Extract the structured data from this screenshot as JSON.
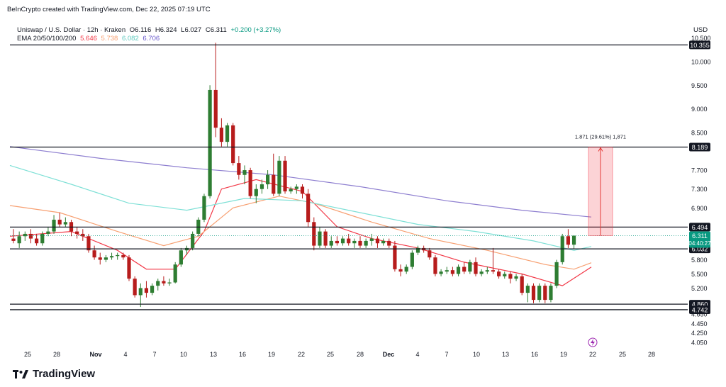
{
  "header": {
    "credit": "BeInCrypto created with TradingView.com, Dec 22, 2025 07:19 UTC",
    "symbol": "Uniswap / U.S. Dollar · 12h · Kraken",
    "ohlc": {
      "o": "O6.116",
      "h": "H6.324",
      "l": "L6.027",
      "c": "C6.311",
      "chg": "+0.200 (+3.27%)"
    },
    "ema_label": "EMA 20/50/100/200",
    "ema_values": [
      "5.646",
      "5.738",
      "6.082",
      "6.706"
    ],
    "currency": "USD"
  },
  "brand": "TradingView",
  "colors": {
    "up": "#089981",
    "down": "#f23645",
    "candle_up": "#2e7d32",
    "candle_down": "#b71c1c",
    "ema20": "#f23645",
    "ema50": "#f7a072",
    "ema100": "#7ee0d6",
    "ema200": "#8e7fd0"
  },
  "chart_data": {
    "type": "candlestick",
    "y_ticks": [
      "10.500",
      "10.000",
      "9.500",
      "9.000",
      "8.500",
      "7.700",
      "7.300",
      "6.900",
      "5.800",
      "5.500",
      "5.200",
      "4.650",
      "4.450",
      "4.250",
      "4.050"
    ],
    "ylim": [
      3.95,
      10.6
    ],
    "x_ticks": [
      "25",
      "28",
      "Nov",
      "4",
      "7",
      "10",
      "13",
      "16",
      "19",
      "22",
      "25",
      "28",
      "Dec",
      "4",
      "7",
      "10",
      "13",
      "16",
      "19",
      "22",
      "25",
      "28"
    ],
    "levels": [
      10.355,
      8.189,
      6.494,
      6.032,
      4.86,
      4.742
    ],
    "level_labels": [
      "10.355",
      "8.189",
      "6.494",
      "6.032",
      "4.860",
      "4.742"
    ],
    "price_label": "6.311",
    "countdown": "04:40:27",
    "measure_label": "1.871 (29.61%) 1,871",
    "candles": [
      [
        6.25,
        6.45,
        6.2,
        6.15
      ],
      [
        6.15,
        6.4,
        6.3,
        6.05
      ],
      [
        6.3,
        6.4,
        6.35,
        6.2
      ],
      [
        6.35,
        6.45,
        6.25,
        6.15
      ],
      [
        6.25,
        6.35,
        6.15,
        6.1
      ],
      [
        6.15,
        6.4,
        6.35,
        6.1
      ],
      [
        6.35,
        6.5,
        6.4,
        6.3
      ],
      [
        6.4,
        6.75,
        6.65,
        6.35
      ],
      [
        6.65,
        6.8,
        6.55,
        6.5
      ],
      [
        6.55,
        6.7,
        6.6,
        6.5
      ],
      [
        6.6,
        6.65,
        6.4,
        6.3
      ],
      [
        6.4,
        6.5,
        6.35,
        6.25
      ],
      [
        6.35,
        6.45,
        6.3,
        6.2
      ],
      [
        6.3,
        6.35,
        6.0,
        5.95
      ],
      [
        6.0,
        6.1,
        5.85,
        5.8
      ],
      [
        5.85,
        5.95,
        5.8,
        5.7
      ],
      [
        5.8,
        5.9,
        5.85,
        5.75
      ],
      [
        5.85,
        5.95,
        5.88,
        5.8
      ],
      [
        5.88,
        5.95,
        5.9,
        5.8
      ],
      [
        5.9,
        5.95,
        5.85,
        5.8
      ],
      [
        5.85,
        5.9,
        5.4,
        5.35
      ],
      [
        5.4,
        5.45,
        5.05,
        5.0
      ],
      [
        5.05,
        5.3,
        5.2,
        4.8
      ],
      [
        5.2,
        5.35,
        5.1,
        5.0
      ],
      [
        5.1,
        5.3,
        5.25,
        5.05
      ],
      [
        5.25,
        5.4,
        5.35,
        5.15
      ],
      [
        5.35,
        5.45,
        5.3,
        5.25
      ],
      [
        5.3,
        5.4,
        5.32,
        5.25
      ],
      [
        5.32,
        5.75,
        5.7,
        5.3
      ],
      [
        5.7,
        6.05,
        6.0,
        5.65
      ],
      [
        6.0,
        6.1,
        6.05,
        5.9
      ],
      [
        6.05,
        6.4,
        6.35,
        6.0
      ],
      [
        6.35,
        6.7,
        6.65,
        6.3
      ],
      [
        6.65,
        7.2,
        7.15,
        6.6
      ],
      [
        7.15,
        9.5,
        9.4,
        7.1
      ],
      [
        9.4,
        10.4,
        8.6,
        8.4
      ],
      [
        8.6,
        8.8,
        8.3,
        8.2
      ],
      [
        8.3,
        8.7,
        8.65,
        8.2
      ],
      [
        8.65,
        8.7,
        7.85,
        7.8
      ],
      [
        7.85,
        8.0,
        7.6,
        7.5
      ],
      [
        7.6,
        7.8,
        7.7,
        7.4
      ],
      [
        7.7,
        7.75,
        7.15,
        7.1
      ],
      [
        7.15,
        7.4,
        7.3,
        7.0
      ],
      [
        7.3,
        7.5,
        7.4,
        7.2
      ],
      [
        7.4,
        7.7,
        7.6,
        7.3
      ],
      [
        7.6,
        8.05,
        7.2,
        7.15
      ],
      [
        7.2,
        8.0,
        7.9,
        7.15
      ],
      [
        7.9,
        8.0,
        7.25,
        7.2
      ],
      [
        7.25,
        7.35,
        7.3,
        7.2
      ],
      [
        7.3,
        7.4,
        7.35,
        7.2
      ],
      [
        7.35,
        7.4,
        7.2,
        7.1
      ],
      [
        7.2,
        7.3,
        6.6,
        6.5
      ],
      [
        6.6,
        6.7,
        6.1,
        6.0
      ],
      [
        6.1,
        6.5,
        6.4,
        6.05
      ],
      [
        6.4,
        6.45,
        6.1,
        6.05
      ],
      [
        6.1,
        6.3,
        6.2,
        6.05
      ],
      [
        6.2,
        6.3,
        6.15,
        6.1
      ],
      [
        6.15,
        6.3,
        6.25,
        6.1
      ],
      [
        6.25,
        6.35,
        6.15,
        6.1
      ],
      [
        6.15,
        6.25,
        6.2,
        6.05
      ],
      [
        6.2,
        6.3,
        6.1,
        6.05
      ],
      [
        6.1,
        6.25,
        6.2,
        6.05
      ],
      [
        6.2,
        6.35,
        6.25,
        6.1
      ],
      [
        6.25,
        6.3,
        6.15,
        6.05
      ],
      [
        6.15,
        6.25,
        6.2,
        6.1
      ],
      [
        6.2,
        6.25,
        6.1,
        6.05
      ],
      [
        6.1,
        6.2,
        5.6,
        5.55
      ],
      [
        5.6,
        5.7,
        5.55,
        5.45
      ],
      [
        5.55,
        5.7,
        5.65,
        5.5
      ],
      [
        5.65,
        6.0,
        5.95,
        5.6
      ],
      [
        5.95,
        6.1,
        6.05,
        5.9
      ],
      [
        6.05,
        6.1,
        6.0,
        5.95
      ],
      [
        6.0,
        6.05,
        5.85,
        5.8
      ],
      [
        5.85,
        5.9,
        5.5,
        5.45
      ],
      [
        5.5,
        5.6,
        5.55,
        5.45
      ],
      [
        5.55,
        5.65,
        5.58,
        5.5
      ],
      [
        5.58,
        5.65,
        5.5,
        5.45
      ],
      [
        5.5,
        5.7,
        5.65,
        5.45
      ],
      [
        5.65,
        5.75,
        5.55,
        5.5
      ],
      [
        5.55,
        5.8,
        5.75,
        5.5
      ],
      [
        5.75,
        5.85,
        5.5,
        5.45
      ],
      [
        5.5,
        5.6,
        5.55,
        5.45
      ],
      [
        5.55,
        5.65,
        5.58,
        5.5
      ],
      [
        5.58,
        6.05,
        5.55,
        5.5
      ],
      [
        5.55,
        5.6,
        5.45,
        5.4
      ],
      [
        5.45,
        5.55,
        5.5,
        5.4
      ],
      [
        5.5,
        5.55,
        5.4,
        5.3
      ],
      [
        5.4,
        5.5,
        5.45,
        5.35
      ],
      [
        5.45,
        5.5,
        5.1,
        5.05
      ],
      [
        5.1,
        5.3,
        5.25,
        4.9
      ],
      [
        5.25,
        5.3,
        4.95,
        4.88
      ],
      [
        4.95,
        5.3,
        5.25,
        4.9
      ],
      [
        5.25,
        5.3,
        4.95,
        4.88
      ],
      [
        4.95,
        5.3,
        5.25,
        4.9
      ],
      [
        5.25,
        5.8,
        5.75,
        5.2
      ],
      [
        5.75,
        6.35,
        6.3,
        5.7
      ],
      [
        6.3,
        6.45,
        6.12,
        6.05
      ],
      [
        6.12,
        6.32,
        6.311,
        6.03
      ]
    ],
    "ema_series": {
      "EMA 20": [
        [
          0,
          6.3
        ],
        [
          10,
          6.4
        ],
        [
          18,
          6.0
        ],
        [
          23,
          5.6
        ],
        [
          28,
          5.6
        ],
        [
          33,
          6.4
        ],
        [
          36,
          7.3
        ],
        [
          42,
          7.5
        ],
        [
          50,
          7.25
        ],
        [
          56,
          6.5
        ],
        [
          62,
          6.25
        ],
        [
          70,
          6.05
        ],
        [
          78,
          5.75
        ],
        [
          88,
          5.5
        ],
        [
          95,
          5.25
        ],
        [
          100,
          5.646
        ]
      ],
      "EMA 50": [
        [
          0,
          6.95
        ],
        [
          8,
          6.8
        ],
        [
          18,
          6.4
        ],
        [
          26,
          6.1
        ],
        [
          32,
          6.3
        ],
        [
          38,
          6.9
        ],
        [
          46,
          7.15
        ],
        [
          52,
          7.0
        ],
        [
          62,
          6.6
        ],
        [
          72,
          6.25
        ],
        [
          82,
          6.0
        ],
        [
          92,
          5.7
        ],
        [
          97,
          5.6
        ],
        [
          100,
          5.738
        ]
      ],
      "EMA 100": [
        [
          0,
          7.8
        ],
        [
          10,
          7.4
        ],
        [
          20,
          7.0
        ],
        [
          30,
          6.85
        ],
        [
          40,
          7.1
        ],
        [
          50,
          7.05
        ],
        [
          60,
          6.8
        ],
        [
          70,
          6.55
        ],
        [
          80,
          6.4
        ],
        [
          90,
          6.2
        ],
        [
          97,
          6.0
        ],
        [
          100,
          6.082
        ]
      ],
      "EMA 200": [
        [
          0,
          8.2
        ],
        [
          15,
          7.95
        ],
        [
          30,
          7.75
        ],
        [
          45,
          7.6
        ],
        [
          60,
          7.35
        ],
        [
          75,
          7.05
        ],
        [
          88,
          6.85
        ],
        [
          100,
          6.706
        ]
      ]
    }
  }
}
